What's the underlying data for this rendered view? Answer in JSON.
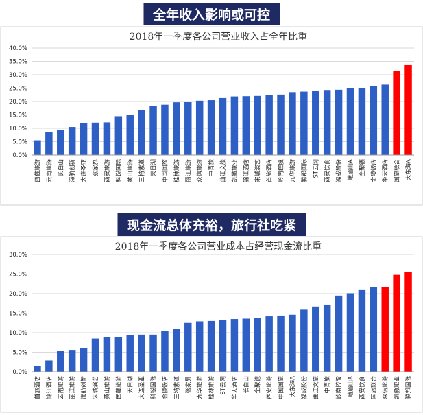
{
  "banners": {
    "top": "全年收入影响或可控",
    "bottom": "现金流总体充裕，旅行社吃紧"
  },
  "colors": {
    "normal": "#2e5fc4",
    "highlight": "#ff0000",
    "banner_bg": "#1f2a63"
  },
  "chart_data": [
    {
      "type": "bar",
      "title": "2018年一季度各公司营业收入占全年比重",
      "ylim": [
        0,
        40
      ],
      "yticks": [
        "0.0%",
        "5.0%",
        "10.0%",
        "15.0%",
        "20.0%",
        "25.0%",
        "30.0%",
        "35.0%",
        "40.0%"
      ],
      "categories": [
        "西藏旅游",
        "云南旅游",
        "长白山",
        "海航创新",
        "大连圣亚",
        "张家界",
        "西安旅游",
        "科锐国际",
        "黄山旅游",
        "三特索道",
        "天目湖",
        "中国国旅",
        "桂林旅游",
        "丽江旅游",
        "众信旅游",
        "中青旅",
        "曲江文旅",
        "凯撒旅业",
        "锦江酒店",
        "宋城演艺",
        "首旅酒店",
        "岭南控股",
        "九华旅游",
        "腾邦国际",
        "ST云网",
        "西安饮食",
        "福成股份",
        "峨眉山A",
        "全聚德",
        "金陵饭店",
        "华天酒店",
        "国旅联合",
        "大东海A"
      ],
      "values": [
        5.5,
        8.7,
        9.3,
        10.5,
        12.0,
        12.1,
        12.2,
        14.5,
        15.0,
        16.8,
        18.3,
        18.8,
        19.7,
        20.0,
        20.3,
        20.5,
        21.3,
        21.9,
        22.0,
        22.1,
        22.5,
        22.6,
        23.5,
        23.7,
        24.1,
        24.3,
        24.4,
        24.9,
        25.0,
        25.7,
        26.3,
        31.3,
        33.6
      ],
      "highlight_count": 2
    },
    {
      "type": "bar",
      "title": "2018年一季度各公司营业成本占经营现金流比重",
      "ylim": [
        0,
        30
      ],
      "yticks": [
        "0.0%",
        "5.0%",
        "10.0%",
        "15.0%",
        "20.0%",
        "25.0%",
        "30.0%"
      ],
      "categories": [
        "首旅酒店",
        "锦江酒店",
        "云南旅游",
        "丽江旅游",
        "海航创新",
        "宋城演艺",
        "黄山旅游",
        "西藏旅游",
        "天目湖",
        "大连圣亚",
        "科锐国际",
        "金陵饭店",
        "三特索道",
        "张家界",
        "九华旅游",
        "桂林旅游",
        "ST云网",
        "华天酒店",
        "长白山",
        "全聚德",
        "西安旅游",
        "中国国旅",
        "大东海A",
        "福成股份",
        "曲江文旅",
        "中青旅",
        "岭南控股",
        "峨眉山A",
        "西安饮食",
        "国旅联合",
        "众信旅游",
        "凯撒旅业",
        "腾邦国际"
      ],
      "values": [
        1.5,
        2.9,
        5.4,
        5.6,
        6.1,
        8.5,
        8.8,
        8.9,
        9.4,
        9.5,
        9.5,
        10.4,
        10.9,
        12.5,
        12.9,
        13.0,
        13.3,
        13.5,
        13.6,
        13.8,
        14.2,
        14.4,
        14.6,
        15.9,
        16.7,
        17.2,
        19.5,
        20.1,
        20.9,
        21.6,
        21.7,
        24.8,
        25.6
      ],
      "highlight_count": 3
    }
  ]
}
